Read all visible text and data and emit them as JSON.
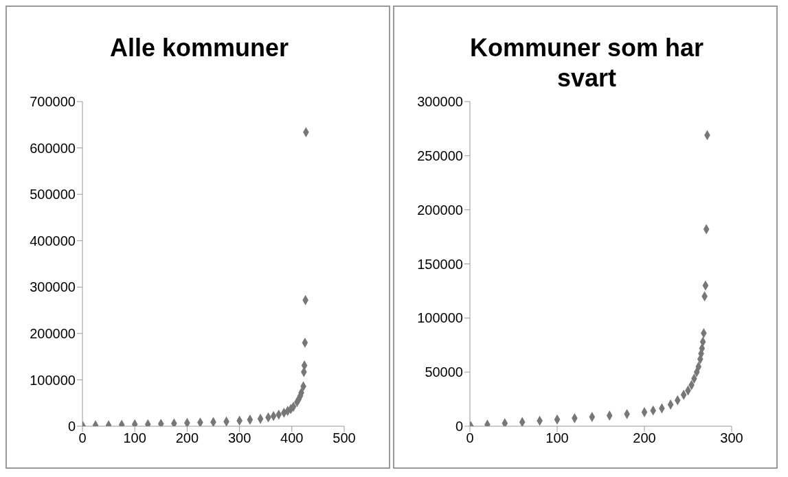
{
  "chart_data": [
    {
      "type": "scatter",
      "title": "Alle kommuner",
      "marker": "diamond",
      "grid": false,
      "legend": false,
      "series": [
        {
          "color": "#777777",
          "x": [
            1,
            25,
            50,
            75,
            100,
            125,
            150,
            175,
            200,
            225,
            250,
            275,
            300,
            320,
            340,
            355,
            365,
            375,
            385,
            392,
            398,
            403,
            410,
            413,
            416,
            418,
            422,
            423,
            424,
            425,
            426,
            427
          ],
          "values": [
            0,
            2000,
            2000,
            3000,
            4000,
            4000,
            5000,
            6000,
            7000,
            8000,
            9000,
            10000,
            12000,
            14000,
            16000,
            19000,
            22000,
            25000,
            29000,
            33000,
            37000,
            42000,
            52000,
            58000,
            65000,
            72000,
            86000,
            117000,
            131000,
            180000,
            272000,
            634000
          ]
        }
      ],
      "xlim": [
        0,
        500
      ],
      "xticks": [
        0,
        100,
        200,
        300,
        400,
        500
      ],
      "ylim": [
        0,
        700000
      ],
      "yticks": [
        0,
        100000,
        200000,
        300000,
        400000,
        500000,
        600000,
        700000
      ]
    },
    {
      "type": "scatter",
      "title": "Kommuner som har svart",
      "marker": "diamond",
      "grid": false,
      "legend": false,
      "series": [
        {
          "color": "#777777",
          "x": [
            1,
            20,
            40,
            60,
            80,
            100,
            120,
            140,
            160,
            180,
            200,
            210,
            220,
            230,
            238,
            245,
            250,
            254,
            257,
            260,
            262,
            264,
            265,
            266,
            267,
            268,
            269,
            270,
            271,
            272
          ],
          "values": [
            100,
            1500,
            2700,
            3800,
            5000,
            6200,
            7400,
            8600,
            9800,
            11200,
            13000,
            14500,
            16500,
            20000,
            24000,
            29000,
            33000,
            38000,
            44000,
            50000,
            55000,
            62000,
            67000,
            72000,
            78000,
            86000,
            120000,
            130000,
            182000,
            269000
          ]
        }
      ],
      "xlim": [
        0,
        300
      ],
      "xticks": [
        0,
        100,
        200,
        300
      ],
      "ylim": [
        0,
        300000
      ],
      "yticks": [
        0,
        50000,
        100000,
        150000,
        200000,
        250000,
        300000
      ]
    }
  ]
}
